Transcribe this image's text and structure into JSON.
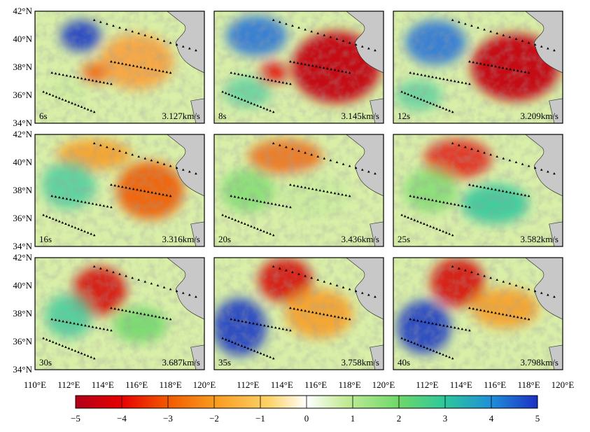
{
  "panels": [
    {
      "period": "6s",
      "velocity": "3.127km/s"
    },
    {
      "period": "8s",
      "velocity": "3.145km/s"
    },
    {
      "period": "12s",
      "velocity": "3.209km/s"
    },
    {
      "period": "16s",
      "velocity": "3.316km/s"
    },
    {
      "period": "20s",
      "velocity": "3.436km/s"
    },
    {
      "period": "25s",
      "velocity": "3.582km/s"
    },
    {
      "period": "30s",
      "velocity": "3.687km/s"
    },
    {
      "period": "35s",
      "velocity": "3.758km/s"
    },
    {
      "period": "40s",
      "velocity": "3.798km/s"
    }
  ],
  "lat_labels": [
    "42°N",
    "40°N",
    "38°N",
    "36°N",
    "34°N"
  ],
  "lon_labels": [
    "110°E",
    "112°E",
    "114°E",
    "116°E",
    "118°E",
    "120°E"
  ],
  "colorbar": {
    "ticks": [
      "−5",
      "−4",
      "−3",
      "−2",
      "−1",
      "0",
      "1",
      "2",
      "3",
      "4",
      "5"
    ],
    "range": [
      -5,
      5
    ],
    "colors": [
      "#b2001a",
      "#e60000",
      "#f15a00",
      "#f99a1e",
      "#fcd46a",
      "#ffffff",
      "#c6ec9a",
      "#6fd86a",
      "#2cc79b",
      "#1f8fd9",
      "#1c2fc4"
    ]
  }
}
